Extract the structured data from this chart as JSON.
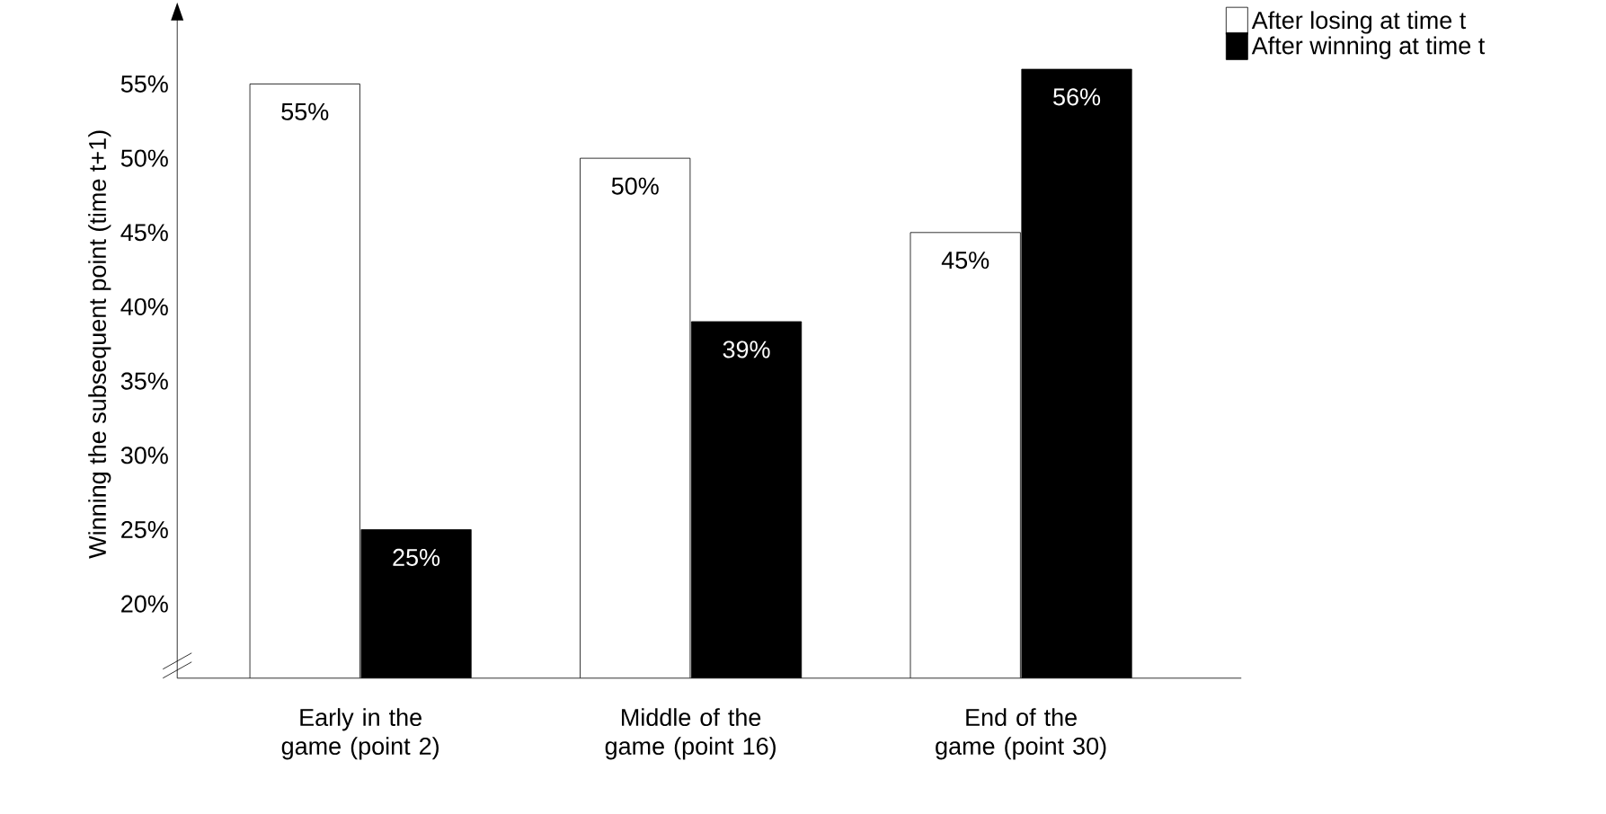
{
  "chart_data": {
    "type": "bar",
    "ylabel": "Winning the subsequent point (time t+1)",
    "categories": [
      "Early in the game (point 2)",
      "Middle of the game (point 16)",
      "End of the game (point 30)"
    ],
    "series": [
      {
        "name": "After losing at time t",
        "color": "#ffffff",
        "values": [
          55,
          50,
          45
        ],
        "value_labels": [
          "55%",
          "50%",
          "45%"
        ]
      },
      {
        "name": "After winning at time t",
        "color": "#000000",
        "values": [
          25,
          39,
          56
        ],
        "value_labels": [
          "25%",
          "39%",
          "56%"
        ]
      }
    ],
    "ylim": [
      15,
      60
    ],
    "yticks": [
      {
        "value": 20,
        "label": "20%"
      },
      {
        "value": 25,
        "label": "25%"
      },
      {
        "value": 30,
        "label": "30%"
      },
      {
        "value": 35,
        "label": "35%"
      },
      {
        "value": 40,
        "label": "40%"
      },
      {
        "value": 45,
        "label": "45%"
      },
      {
        "value": 50,
        "label": "50%"
      },
      {
        "value": 55,
        "label": "55%"
      }
    ],
    "legend": "top right",
    "grid": false
  }
}
